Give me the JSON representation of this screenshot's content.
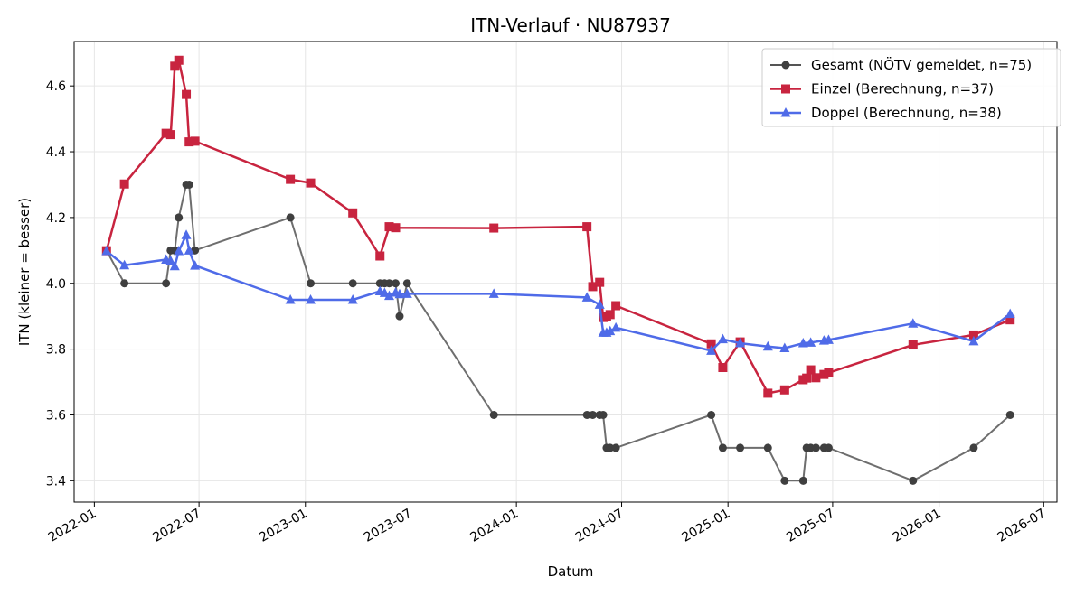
{
  "chart_data": {
    "type": "line",
    "title": "ITN-Verlauf · NU87937",
    "xlabel": "Datum",
    "ylabel": "ITN  (kleiner = besser)",
    "x_type": "date",
    "xlim": [
      "2021-11-27",
      "2026-07-24"
    ],
    "ylim": [
      3.335,
      4.735
    ],
    "x_ticks": [
      "2022-01-01",
      "2022-07-01",
      "2023-01-01",
      "2023-07-01",
      "2024-01-01",
      "2024-07-01",
      "2025-01-01",
      "2025-07-01",
      "2026-01-01",
      "2026-07-01"
    ],
    "x_tick_labels": [
      "2022-01",
      "2022-07",
      "2023-01",
      "2023-07",
      "2024-01",
      "2024-07",
      "2025-01",
      "2025-07",
      "2026-01",
      "2026-07"
    ],
    "y_ticks": [
      3.4,
      3.6,
      3.8,
      4.0,
      4.2,
      4.4,
      4.6
    ],
    "y_tick_labels": [
      "3.4",
      "3.6",
      "3.8",
      "4.0",
      "4.2",
      "4.4",
      "4.6"
    ],
    "grid": true,
    "legend_position": "top-right",
    "series": [
      {
        "name": "Gesamt (NÖTV gemeldet, n=75)",
        "color": "#555555",
        "marker_color": "#3f3f3f",
        "marker": "circle",
        "points": [
          [
            "2022-01-22",
            4.1
          ],
          [
            "2022-02-22",
            4.0
          ],
          [
            "2022-05-05",
            4.0
          ],
          [
            "2022-05-13",
            4.1
          ],
          [
            "2022-05-20",
            4.1
          ],
          [
            "2022-05-27",
            4.2
          ],
          [
            "2022-06-09",
            4.3
          ],
          [
            "2022-06-14",
            4.3
          ],
          [
            "2022-06-24",
            4.1
          ],
          [
            "2022-12-06",
            4.2
          ],
          [
            "2023-01-10",
            4.0
          ],
          [
            "2023-03-24",
            4.0
          ],
          [
            "2023-05-10",
            4.0
          ],
          [
            "2023-05-18",
            4.0
          ],
          [
            "2023-05-26",
            4.0
          ],
          [
            "2023-06-06",
            4.0
          ],
          [
            "2023-06-13",
            3.9
          ],
          [
            "2023-06-26",
            4.0
          ],
          [
            "2023-11-23",
            3.6
          ],
          [
            "2024-05-02",
            3.6
          ],
          [
            "2024-05-12",
            3.6
          ],
          [
            "2024-05-24",
            3.6
          ],
          [
            "2024-05-30",
            3.6
          ],
          [
            "2024-06-05",
            3.5
          ],
          [
            "2024-06-11",
            3.5
          ],
          [
            "2024-06-21",
            3.5
          ],
          [
            "2024-12-03",
            3.6
          ],
          [
            "2024-12-23",
            3.5
          ],
          [
            "2025-01-22",
            3.5
          ],
          [
            "2025-03-11",
            3.5
          ],
          [
            "2025-04-09",
            3.4
          ],
          [
            "2025-05-11",
            3.4
          ],
          [
            "2025-05-17",
            3.5
          ],
          [
            "2025-05-24",
            3.5
          ],
          [
            "2025-06-02",
            3.5
          ],
          [
            "2025-06-16",
            3.5
          ],
          [
            "2025-06-24",
            3.5
          ],
          [
            "2025-11-17",
            3.4
          ],
          [
            "2026-03-02",
            3.5
          ],
          [
            "2026-05-04",
            3.6
          ]
        ]
      },
      {
        "name": "Einzel (Berechnung, n=37)",
        "color": "#c8243f",
        "marker_color": "#c8243f",
        "marker": "square",
        "points": [
          [
            "2022-01-22",
            4.099
          ],
          [
            "2022-02-22",
            4.302
          ],
          [
            "2022-05-05",
            4.456
          ],
          [
            "2022-05-13",
            4.452
          ],
          [
            "2022-05-20",
            4.66
          ],
          [
            "2022-05-27",
            4.678
          ],
          [
            "2022-06-09",
            4.574
          ],
          [
            "2022-06-14",
            4.43
          ],
          [
            "2022-06-24",
            4.432
          ],
          [
            "2022-12-06",
            4.316
          ],
          [
            "2023-01-10",
            4.305
          ],
          [
            "2023-03-24",
            4.214
          ],
          [
            "2023-05-10",
            4.083
          ],
          [
            "2023-05-26",
            4.172
          ],
          [
            "2023-06-06",
            4.169
          ],
          [
            "2023-11-23",
            4.168
          ],
          [
            "2024-05-02",
            4.172
          ],
          [
            "2024-05-12",
            3.99
          ],
          [
            "2024-05-24",
            4.003
          ],
          [
            "2024-05-30",
            3.896
          ],
          [
            "2024-06-05",
            3.898
          ],
          [
            "2024-06-11",
            3.905
          ],
          [
            "2024-06-21",
            3.932
          ],
          [
            "2024-12-03",
            3.816
          ],
          [
            "2024-12-23",
            3.744
          ],
          [
            "2025-01-22",
            3.822
          ],
          [
            "2025-03-11",
            3.666
          ],
          [
            "2025-04-09",
            3.676
          ],
          [
            "2025-05-11",
            3.707
          ],
          [
            "2025-05-17",
            3.712
          ],
          [
            "2025-05-24",
            3.737
          ],
          [
            "2025-06-02",
            3.713
          ],
          [
            "2025-06-16",
            3.723
          ],
          [
            "2025-06-24",
            3.728
          ],
          [
            "2025-11-17",
            3.813
          ],
          [
            "2026-03-02",
            3.843
          ],
          [
            "2026-05-04",
            3.889
          ]
        ]
      },
      {
        "name": "Doppel (Berechnung, n=38)",
        "color": "#4f6be8",
        "marker_color": "#4f6be8",
        "marker": "triangle",
        "points": [
          [
            "2022-01-22",
            4.098
          ],
          [
            "2022-02-22",
            4.055
          ],
          [
            "2022-05-05",
            4.072
          ],
          [
            "2022-05-13",
            4.068
          ],
          [
            "2022-05-20",
            4.052
          ],
          [
            "2022-05-27",
            4.098
          ],
          [
            "2022-06-09",
            4.147
          ],
          [
            "2022-06-14",
            4.1
          ],
          [
            "2022-06-24",
            4.054
          ],
          [
            "2022-12-06",
            3.95
          ],
          [
            "2023-01-10",
            3.95
          ],
          [
            "2023-03-24",
            3.95
          ],
          [
            "2023-05-10",
            3.976
          ],
          [
            "2023-05-18",
            3.971
          ],
          [
            "2023-05-26",
            3.962
          ],
          [
            "2023-06-06",
            3.972
          ],
          [
            "2023-06-13",
            3.967
          ],
          [
            "2023-06-26",
            3.968
          ],
          [
            "2023-11-23",
            3.968
          ],
          [
            "2024-05-02",
            3.957
          ],
          [
            "2024-05-24",
            3.935
          ],
          [
            "2024-05-30",
            3.85
          ],
          [
            "2024-06-05",
            3.85
          ],
          [
            "2024-06-11",
            3.855
          ],
          [
            "2024-06-21",
            3.865
          ],
          [
            "2024-12-03",
            3.795
          ],
          [
            "2024-12-23",
            3.83
          ],
          [
            "2025-01-22",
            3.818
          ],
          [
            "2025-03-11",
            3.808
          ],
          [
            "2025-04-09",
            3.803
          ],
          [
            "2025-05-11",
            3.818
          ],
          [
            "2025-05-24",
            3.82
          ],
          [
            "2025-06-16",
            3.826
          ],
          [
            "2025-06-24",
            3.828
          ],
          [
            "2025-11-17",
            3.878
          ],
          [
            "2026-03-02",
            3.824
          ],
          [
            "2026-05-04",
            3.907
          ]
        ]
      }
    ]
  }
}
